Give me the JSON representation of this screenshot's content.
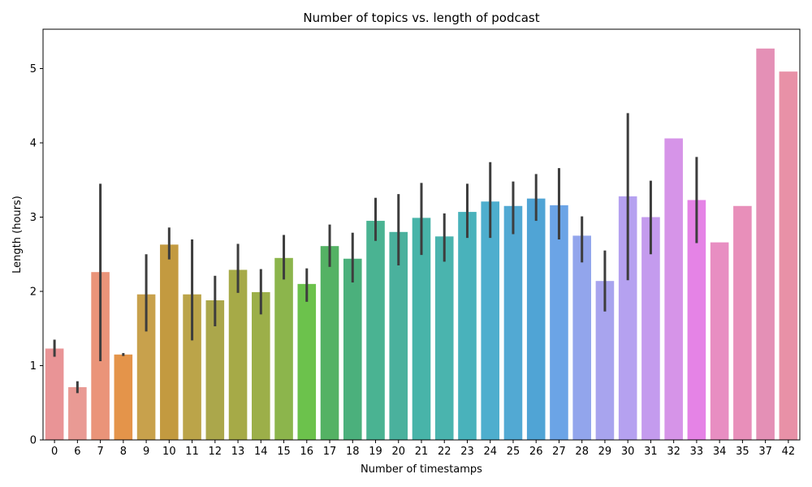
{
  "chart_data": {
    "type": "bar",
    "title": "Number of topics vs. length of podcast",
    "xlabel": "Number of timestamps",
    "ylabel": "Length (hours)",
    "ylim": [
      0,
      5.53
    ],
    "yticks": [
      "0",
      "1",
      "2",
      "3",
      "4",
      "5"
    ],
    "grid": false,
    "legend": "none",
    "error_bars": true,
    "categories": [
      "0",
      "6",
      "7",
      "8",
      "9",
      "10",
      "11",
      "12",
      "13",
      "14",
      "15",
      "16",
      "17",
      "18",
      "19",
      "20",
      "21",
      "22",
      "23",
      "24",
      "25",
      "26",
      "27",
      "28",
      "29",
      "30",
      "31",
      "32",
      "33",
      "34",
      "35",
      "37",
      "42"
    ],
    "values": [
      1.23,
      0.71,
      2.26,
      1.15,
      1.96,
      2.63,
      1.96,
      1.88,
      2.29,
      1.99,
      2.45,
      2.1,
      2.61,
      2.44,
      2.95,
      2.8,
      2.99,
      2.74,
      3.07,
      3.21,
      3.15,
      3.25,
      3.16,
      2.75,
      2.14,
      3.28,
      3.0,
      4.06,
      3.23,
      2.66,
      3.15,
      5.27,
      4.96
    ],
    "ci": [
      [
        1.12,
        1.35
      ],
      [
        0.63,
        0.79
      ],
      [
        1.06,
        3.45
      ],
      [
        1.13,
        1.17
      ],
      [
        1.46,
        2.5
      ],
      [
        2.43,
        2.86
      ],
      [
        1.34,
        2.7
      ],
      [
        1.53,
        2.21
      ],
      [
        1.98,
        2.64
      ],
      [
        1.69,
        2.3
      ],
      [
        2.16,
        2.76
      ],
      [
        1.86,
        2.31
      ],
      [
        2.33,
        2.9
      ],
      [
        2.12,
        2.79
      ],
      [
        2.68,
        3.26
      ],
      [
        2.35,
        3.31
      ],
      [
        2.49,
        3.46
      ],
      [
        2.4,
        3.05
      ],
      [
        2.72,
        3.45
      ],
      [
        2.72,
        3.74
      ],
      [
        2.77,
        3.48
      ],
      [
        2.95,
        3.58
      ],
      [
        2.7,
        3.66
      ],
      [
        2.39,
        3.01
      ],
      [
        1.73,
        2.55
      ],
      [
        2.15,
        4.4
      ],
      [
        2.5,
        3.49
      ],
      null,
      [
        2.65,
        3.81
      ],
      null,
      null,
      null,
      null
    ],
    "colors": [
      "#e99496",
      "#e99a94",
      "#ea9479",
      "#e4944a",
      "#c8a14c",
      "#c39a40",
      "#bba449",
      "#aba74b",
      "#a6aa47",
      "#9caf49",
      "#8cb54c",
      "#6cc24c",
      "#54b264",
      "#4bb07c",
      "#4ab392",
      "#4ab19d",
      "#48b4a9",
      "#4ab4ae",
      "#49b2bb",
      "#4eaece",
      "#52a9d3",
      "#50a4d5",
      "#6ba4e6",
      "#92a5ec",
      "#a8a4ee",
      "#b5a1f0",
      "#c49bee",
      "#d694e8",
      "#e583e6",
      "#e88ec2",
      "#e88fba",
      "#e490b6",
      "#e891a7"
    ],
    "error_color": "#3d3d3d"
  }
}
